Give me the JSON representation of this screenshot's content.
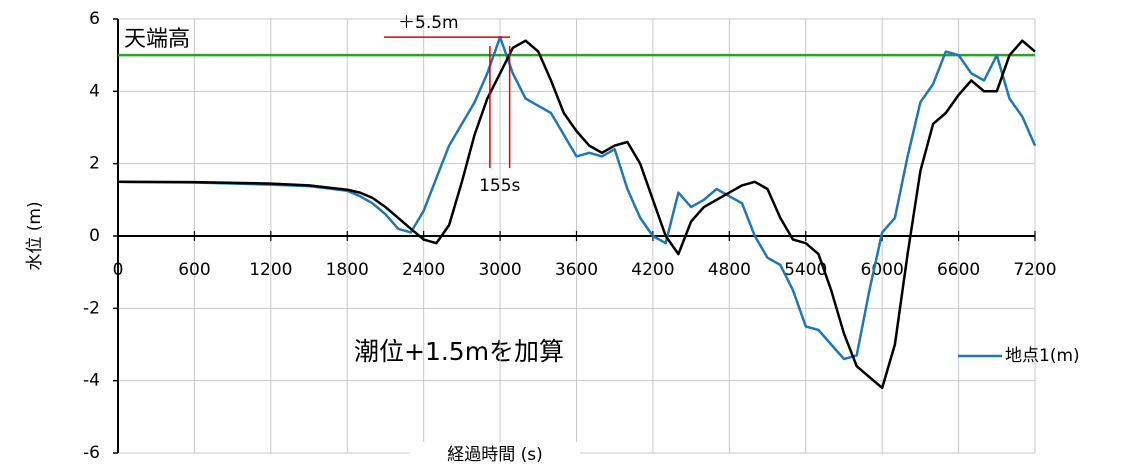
{
  "chart_data": {
    "type": "line",
    "annotations": [
      "潮位+1.5mを加算"
    ],
    "x_label": "経過時間 (s)",
    "y_label": "水位 (m)",
    "x": [
      0,
      600,
      1200,
      1500,
      1800,
      1900,
      2000,
      2100,
      2200,
      2300,
      2400,
      2500,
      2600,
      2700,
      2800,
      2900,
      3000,
      3100,
      3200,
      3300,
      3400,
      3500,
      3600,
      3700,
      3800,
      3900,
      4000,
      4100,
      4200,
      4300,
      4400,
      4500,
      4600,
      4700,
      4800,
      4900,
      5000,
      5100,
      5200,
      5300,
      5400,
      5500,
      5600,
      5700,
      5800,
      5900,
      6000,
      6100,
      6200,
      6300,
      6400,
      6500,
      6600,
      6700,
      6800,
      6900,
      7000,
      7100,
      7200
    ],
    "series": [
      {
        "name": "地点1(m)",
        "color": "#1f77b4",
        "values": [
          1.5,
          1.48,
          1.42,
          1.38,
          1.25,
          1.1,
          0.9,
          0.6,
          0.2,
          0.1,
          0.7,
          1.6,
          2.5,
          3.1,
          3.7,
          4.5,
          5.5,
          4.5,
          3.8,
          3.6,
          3.4,
          2.8,
          2.2,
          2.3,
          2.2,
          2.4,
          1.3,
          0.5,
          0,
          -0.2,
          1.2,
          0.8,
          1.0,
          1.3,
          1.1,
          0.9,
          0,
          -0.6,
          -0.8,
          -1.5,
          -2.5,
          -2.6,
          -3.0,
          -3.4,
          -3.3,
          -1.5,
          0.1,
          0.5,
          2.2,
          3.7,
          4.2,
          5.1,
          5.0,
          4.5,
          4.3,
          5.0,
          3.8,
          3.3,
          2.5
        ]
      },
      {
        "color": "#000000",
        "values": [
          1.5,
          1.49,
          1.45,
          1.4,
          1.28,
          1.2,
          1.05,
          0.8,
          0.5,
          0.2,
          -0.1,
          -0.2,
          0.3,
          1.5,
          2.8,
          3.8,
          4.5,
          5.2,
          5.4,
          5.1,
          4.3,
          3.4,
          2.9,
          2.5,
          2.3,
          2.5,
          2.6,
          2.0,
          1.0,
          0,
          -0.5,
          0.4,
          0.8,
          1.0,
          1.2,
          1.4,
          1.5,
          1.3,
          0.5,
          -0.1,
          -0.2,
          -0.5,
          -1.5,
          -2.7,
          -3.6,
          -3.9,
          -4.2,
          -3.0,
          -0.5,
          1.8,
          3.1,
          3.4,
          3.9,
          4.3,
          4.0,
          4.0,
          5.0,
          5.4,
          5.1
        ]
      }
    ],
    "reference_line": {
      "value": 5,
      "label": "天端高",
      "color": "#2ca02c"
    },
    "peak_marker": {
      "value": 5.5,
      "label": "＋5.5m",
      "color": "#e00000"
    },
    "lag_marker": {
      "x": [
        2920,
        3075
      ],
      "label": "155s",
      "color": "#e00000"
    },
    "xlim": [
      0,
      7200
    ],
    "xticks": [
      0,
      600,
      1200,
      1800,
      2400,
      3000,
      3600,
      4200,
      4800,
      5400,
      6000,
      6600,
      7200
    ],
    "ylim": [
      -6,
      6
    ],
    "yticks": [
      -6,
      -4,
      -2,
      0,
      2,
      4,
      6
    ],
    "grid": true
  }
}
